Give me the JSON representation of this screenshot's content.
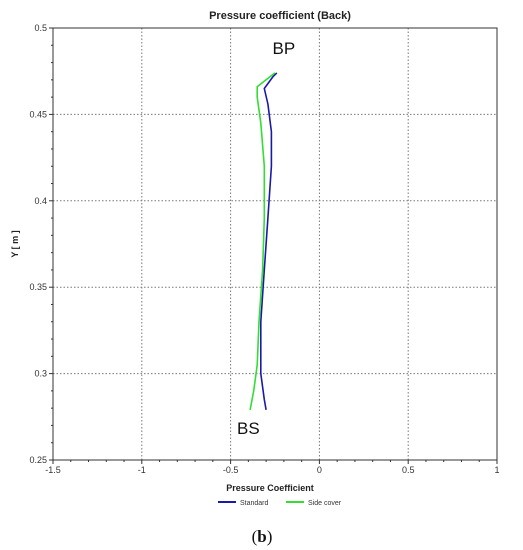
{
  "chart_data": {
    "type": "line",
    "title": "Pressure coefficient (Back)",
    "xlabel": "Pressure Coefficient",
    "ylabel": "Y [ m ]",
    "xlim": [
      -1.5,
      1
    ],
    "ylim": [
      0.25,
      0.5
    ],
    "x_ticks": [
      "-1.5",
      "-1",
      "-0.5",
      "0",
      "0.5",
      "1"
    ],
    "y_ticks": [
      "0.25",
      "0.3",
      "0.35",
      "0.4",
      "0.45",
      "0.5"
    ],
    "grid": true,
    "legend_position": "bottom",
    "series": [
      {
        "name": "Standard",
        "color": "#1a1aa6",
        "points": [
          [
            -0.3,
            0.279
          ],
          [
            -0.31,
            0.285
          ],
          [
            -0.33,
            0.3
          ],
          [
            -0.33,
            0.33
          ],
          [
            -0.31,
            0.36
          ],
          [
            -0.29,
            0.39
          ],
          [
            -0.27,
            0.42
          ],
          [
            -0.27,
            0.44
          ],
          [
            -0.29,
            0.456
          ],
          [
            -0.31,
            0.465
          ],
          [
            -0.26,
            0.472
          ],
          [
            -0.24,
            0.474
          ]
        ]
      },
      {
        "name": "Side cover",
        "color": "#33dd33",
        "points": [
          [
            -0.39,
            0.279
          ],
          [
            -0.37,
            0.29
          ],
          [
            -0.35,
            0.305
          ],
          [
            -0.34,
            0.33
          ],
          [
            -0.32,
            0.36
          ],
          [
            -0.31,
            0.39
          ],
          [
            -0.31,
            0.42
          ],
          [
            -0.33,
            0.445
          ],
          [
            -0.35,
            0.46
          ],
          [
            -0.35,
            0.466
          ],
          [
            -0.3,
            0.47
          ],
          [
            -0.25,
            0.474
          ]
        ]
      }
    ],
    "annotations": [
      {
        "text": "BP",
        "x": -0.2,
        "y": 0.485
      },
      {
        "text": "BS",
        "x": -0.4,
        "y": 0.265
      }
    ],
    "caption": {
      "open": "(",
      "letter": "b",
      "close": ")"
    }
  }
}
